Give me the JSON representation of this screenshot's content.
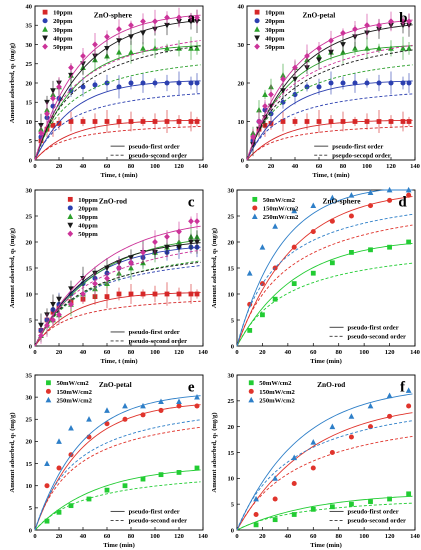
{
  "chart_data": [
    {
      "type": "scatter",
      "panel_label": "a",
      "title": "ZnO-sphere",
      "xlabel": "Time, t (min)",
      "ylabel": "Amount adsorbed, qₜ (mg/g)",
      "xlim": [
        0,
        140
      ],
      "ylim": [
        0,
        40
      ],
      "xticks": [
        0,
        20,
        40,
        60,
        80,
        100,
        120,
        140
      ],
      "yticks": [
        0,
        5,
        10,
        15,
        20,
        25,
        30,
        35,
        40
      ],
      "legend_position": "top-left",
      "model_legend": [
        "pseudo-first order",
        "pseudo-second order"
      ],
      "error_bars": true,
      "series": [
        {
          "name": "10ppm",
          "color": "#d62728",
          "marker": "square",
          "x": [
            5,
            10,
            15,
            20,
            30,
            40,
            50,
            60,
            70,
            80,
            90,
            100,
            110,
            120,
            130,
            135
          ],
          "y": [
            5,
            8,
            9,
            9.5,
            10,
            10,
            10,
            10,
            10,
            10,
            10,
            10,
            10,
            10,
            10,
            10
          ]
        },
        {
          "name": "20ppm",
          "color": "#2b3fb0",
          "marker": "circle",
          "x": [
            5,
            10,
            15,
            20,
            30,
            40,
            50,
            60,
            70,
            80,
            90,
            100,
            110,
            120,
            130,
            135
          ],
          "y": [
            6,
            11,
            14,
            16,
            18,
            19,
            19.5,
            20,
            19,
            20,
            20,
            20,
            20,
            20,
            20,
            20
          ]
        },
        {
          "name": "30ppm",
          "color": "#2ca02c",
          "marker": "triangle",
          "x": [
            5,
            10,
            15,
            20,
            30,
            40,
            50,
            60,
            70,
            80,
            90,
            100,
            110,
            120,
            130,
            135
          ],
          "y": [
            8,
            13,
            17,
            19,
            22,
            24,
            26,
            27,
            28,
            28,
            29,
            29,
            29,
            29,
            29,
            29
          ]
        },
        {
          "name": "40ppm",
          "color": "#1a1a1a",
          "marker": "triangle-down",
          "x": [
            5,
            10,
            15,
            20,
            30,
            40,
            50,
            60,
            70,
            80,
            90,
            100,
            110,
            120,
            130,
            135
          ],
          "y": [
            9,
            15,
            18,
            20,
            22,
            25,
            27,
            29,
            31,
            32,
            33,
            34,
            35,
            36,
            36,
            36
          ]
        },
        {
          "name": "50ppm",
          "color": "#cc3399",
          "marker": "diamond",
          "x": [
            5,
            10,
            15,
            20,
            30,
            40,
            50,
            60,
            70,
            80,
            90,
            100,
            110,
            120,
            130,
            135
          ],
          "y": [
            7,
            12,
            16,
            19,
            24,
            27,
            30,
            32,
            34,
            35,
            36,
            36,
            37,
            37,
            37,
            37
          ]
        }
      ]
    },
    {
      "type": "scatter",
      "panel_label": "b",
      "title": "ZnO-petal",
      "xlabel": "Time, t (min)",
      "ylabel": "",
      "xlim": [
        0,
        140
      ],
      "ylim": [
        0,
        40
      ],
      "xticks": [
        0,
        20,
        40,
        60,
        80,
        100,
        120,
        140
      ],
      "yticks": [
        0,
        10,
        20,
        30,
        40
      ],
      "legend_position": "top-left",
      "model_legend": [
        "pseudo-first order",
        "pseudo-second order"
      ],
      "error_bars": true,
      "series": [
        {
          "name": "10ppm",
          "color": "#d62728",
          "marker": "square",
          "x": [
            5,
            10,
            15,
            20,
            30,
            40,
            50,
            60,
            70,
            80,
            90,
            100,
            110,
            120,
            130,
            135
          ],
          "y": [
            5,
            8,
            9,
            9.5,
            10,
            10,
            10,
            10,
            10,
            10,
            10,
            10,
            10,
            10,
            10,
            10
          ]
        },
        {
          "name": "20ppm",
          "color": "#2b3fb0",
          "marker": "circle",
          "x": [
            5,
            10,
            15,
            20,
            30,
            40,
            50,
            60,
            70,
            80,
            90,
            100,
            110,
            120,
            130,
            135
          ],
          "y": [
            5,
            10,
            13,
            12,
            15,
            17,
            19,
            19,
            20,
            20,
            20,
            20,
            20,
            20,
            20,
            20
          ]
        },
        {
          "name": "30ppm",
          "color": "#2ca02c",
          "marker": "triangle",
          "x": [
            5,
            10,
            15,
            20,
            30,
            40,
            50,
            60,
            70,
            80,
            90,
            100,
            110,
            120,
            130,
            135
          ],
          "y": [
            7,
            13,
            17,
            19,
            22,
            24,
            26,
            27,
            28,
            28,
            29,
            29,
            29,
            29,
            29,
            29
          ]
        },
        {
          "name": "40ppm",
          "color": "#1a1a1a",
          "marker": "triangle-down",
          "x": [
            5,
            10,
            15,
            20,
            30,
            40,
            50,
            60,
            70,
            80,
            90,
            100,
            110,
            120,
            130,
            135
          ],
          "y": [
            4,
            8,
            11,
            14,
            18,
            21,
            24,
            26,
            28,
            30,
            32,
            33,
            34,
            35,
            35,
            35
          ]
        },
        {
          "name": "50ppm",
          "color": "#cc3399",
          "marker": "diamond",
          "x": [
            5,
            10,
            15,
            20,
            30,
            40,
            50,
            60,
            70,
            80,
            90,
            100,
            110,
            120,
            130,
            135
          ],
          "y": [
            6,
            10,
            14,
            17,
            21,
            24,
            27,
            29,
            31,
            33,
            34,
            35,
            35,
            36,
            36,
            36
          ]
        }
      ]
    },
    {
      "type": "scatter",
      "panel_label": "c",
      "title": "ZnO-rod",
      "xlabel": "Time, t (min)",
      "ylabel": "Amount adsorbed, qₜ (mg/g)",
      "xlim": [
        0,
        140
      ],
      "ylim": [
        0,
        30
      ],
      "xticks": [
        0,
        20,
        40,
        60,
        80,
        100,
        120,
        140
      ],
      "yticks": [
        0,
        5,
        10,
        15,
        20,
        25,
        30
      ],
      "legend_position": "top-left",
      "model_legend": [
        "pseudo-first order",
        "pseudo-second order"
      ],
      "error_bars": true,
      "series": [
        {
          "name": "10ppm",
          "color": "#d62728",
          "marker": "square",
          "x": [
            5,
            10,
            15,
            20,
            30,
            40,
            50,
            60,
            70,
            80,
            90,
            100,
            110,
            120,
            130,
            135
          ],
          "y": [
            3,
            5,
            6.5,
            7.5,
            8.5,
            9,
            9.5,
            9.5,
            10,
            10,
            10,
            10,
            10,
            10,
            10,
            10
          ]
        },
        {
          "name": "20ppm",
          "color": "#2b3fb0",
          "marker": "circle",
          "x": [
            5,
            10,
            15,
            20,
            30,
            40,
            50,
            60,
            70,
            80,
            90,
            100,
            110,
            120,
            130,
            135
          ],
          "y": [
            3,
            5,
            7,
            8,
            10,
            12,
            13,
            14,
            15,
            16,
            17,
            18,
            18,
            19,
            19,
            19
          ]
        },
        {
          "name": "30ppm",
          "color": "#2ca02c",
          "marker": "triangle",
          "x": [
            5,
            10,
            15,
            20,
            30,
            40,
            50,
            60,
            70,
            80,
            90,
            100,
            110,
            120,
            130,
            135
          ],
          "y": [
            2,
            4,
            5,
            6,
            8,
            10,
            11,
            12,
            14,
            15,
            16,
            18,
            19,
            20,
            21,
            21
          ]
        },
        {
          "name": "40ppm",
          "color": "#1a1a1a",
          "marker": "triangle-down",
          "x": [
            5,
            10,
            15,
            20,
            30,
            40,
            50,
            60,
            70,
            80,
            90,
            100,
            110,
            120,
            130,
            135
          ],
          "y": [
            4,
            6,
            8,
            9,
            11,
            13,
            14,
            15,
            16,
            17,
            18,
            18,
            19,
            19,
            20,
            20
          ]
        },
        {
          "name": "50ppm",
          "color": "#cc3399",
          "marker": "diamond",
          "x": [
            5,
            10,
            15,
            20,
            30,
            40,
            50,
            60,
            70,
            80,
            90,
            100,
            110,
            120,
            130,
            135
          ],
          "y": [
            2,
            4,
            5,
            6,
            8,
            10,
            12,
            13,
            15,
            16,
            18,
            20,
            21,
            22,
            24,
            24
          ]
        }
      ]
    },
    {
      "type": "scatter",
      "panel_label": "d",
      "title": "ZnO-sphere",
      "xlabel": "Time (min)",
      "ylabel": "Amount adsorbed, qₜ (mg/g)",
      "xlim": [
        0,
        140
      ],
      "ylim": [
        0,
        30
      ],
      "xticks": [
        0,
        20,
        40,
        60,
        80,
        100,
        120,
        140
      ],
      "yticks": [
        0,
        5,
        10,
        15,
        20,
        25,
        30
      ],
      "legend_position": "top-left",
      "model_legend": [
        "pseudo-first order",
        "pseudo-second order"
      ],
      "error_bars": false,
      "series": [
        {
          "name": "50mW/cm2",
          "color": "#22cc33",
          "marker": "square",
          "x": [
            10,
            20,
            30,
            45,
            60,
            75,
            90,
            105,
            120,
            135
          ],
          "y": [
            3,
            6,
            9,
            12,
            14,
            16,
            18,
            18.5,
            19,
            20
          ]
        },
        {
          "name": "150mW/cm2",
          "color": "#e0342c",
          "marker": "circle",
          "x": [
            10,
            20,
            30,
            45,
            60,
            75,
            90,
            105,
            120,
            135
          ],
          "y": [
            8,
            12,
            15,
            19,
            22,
            24,
            25,
            27,
            28,
            29
          ]
        },
        {
          "name": "250mW/cm2",
          "color": "#2e7fc8",
          "marker": "triangle",
          "x": [
            10,
            20,
            30,
            45,
            60,
            75,
            90,
            105,
            120,
            135
          ],
          "y": [
            14,
            19,
            23,
            26,
            27,
            28.5,
            29,
            29.5,
            30,
            30
          ]
        }
      ]
    },
    {
      "type": "scatter",
      "panel_label": "e",
      "title": "ZnO-petal",
      "xlabel": "Time (min)",
      "ylabel": "Amount adsorbed, qₜ (mg/g)",
      "xlim": [
        0,
        140
      ],
      "ylim": [
        0,
        35
      ],
      "xticks": [
        0,
        20,
        40,
        60,
        80,
        100,
        120,
        140
      ],
      "yticks": [
        0,
        5,
        10,
        15,
        20,
        25,
        30,
        35
      ],
      "legend_position": "top-left",
      "model_legend": [
        "pseudo-first order",
        "pseudo-second order"
      ],
      "error_bars": false,
      "series": [
        {
          "name": "50mW/cm2",
          "color": "#22cc33",
          "marker": "square",
          "x": [
            10,
            20,
            30,
            45,
            60,
            75,
            90,
            105,
            120,
            135
          ],
          "y": [
            2,
            4,
            5.5,
            7,
            9,
            10,
            11.5,
            12.5,
            13,
            14
          ]
        },
        {
          "name": "150mW/cm2",
          "color": "#e0342c",
          "marker": "circle",
          "x": [
            10,
            20,
            30,
            45,
            60,
            75,
            90,
            105,
            120,
            135
          ],
          "y": [
            10,
            14,
            17,
            21,
            24,
            25,
            26,
            27,
            28,
            28
          ]
        },
        {
          "name": "250mW/cm2",
          "color": "#2e7fc8",
          "marker": "triangle",
          "x": [
            10,
            20,
            30,
            45,
            60,
            75,
            90,
            105,
            120,
            135
          ],
          "y": [
            15,
            20,
            23,
            25,
            27,
            28,
            28,
            29,
            29,
            30
          ]
        }
      ]
    },
    {
      "type": "scatter",
      "panel_label": "f",
      "title": "ZnO-rod",
      "xlabel": "Time (min)",
      "ylabel": "Amount adsorbed, qₜ (mg/g)",
      "xlim": [
        0,
        140
      ],
      "ylim": [
        0,
        30
      ],
      "xticks": [
        0,
        20,
        40,
        60,
        80,
        100,
        120,
        140
      ],
      "yticks": [
        0,
        5,
        10,
        15,
        20,
        25,
        30
      ],
      "legend_position": "top-left",
      "model_legend": [
        "pseudo-first order",
        "pseudo-second order"
      ],
      "error_bars": false,
      "series": [
        {
          "name": "50mW/cm2",
          "color": "#22cc33",
          "marker": "square",
          "x": [
            15,
            30,
            45,
            60,
            75,
            90,
            105,
            120,
            135
          ],
          "y": [
            1,
            2,
            3,
            4,
            4.5,
            5,
            5.5,
            6,
            7
          ]
        },
        {
          "name": "150mW/cm2",
          "color": "#e0342c",
          "marker": "circle",
          "x": [
            15,
            30,
            45,
            60,
            75,
            90,
            105,
            120,
            135
          ],
          "y": [
            3,
            6,
            9,
            12,
            15,
            18,
            20,
            22,
            24
          ]
        },
        {
          "name": "250mW/cm2",
          "color": "#2e7fc8",
          "marker": "triangle",
          "x": [
            15,
            30,
            45,
            60,
            75,
            90,
            105,
            120,
            135
          ],
          "y": [
            6,
            10,
            14,
            17,
            20,
            22,
            24,
            26,
            27
          ]
        }
      ]
    }
  ]
}
